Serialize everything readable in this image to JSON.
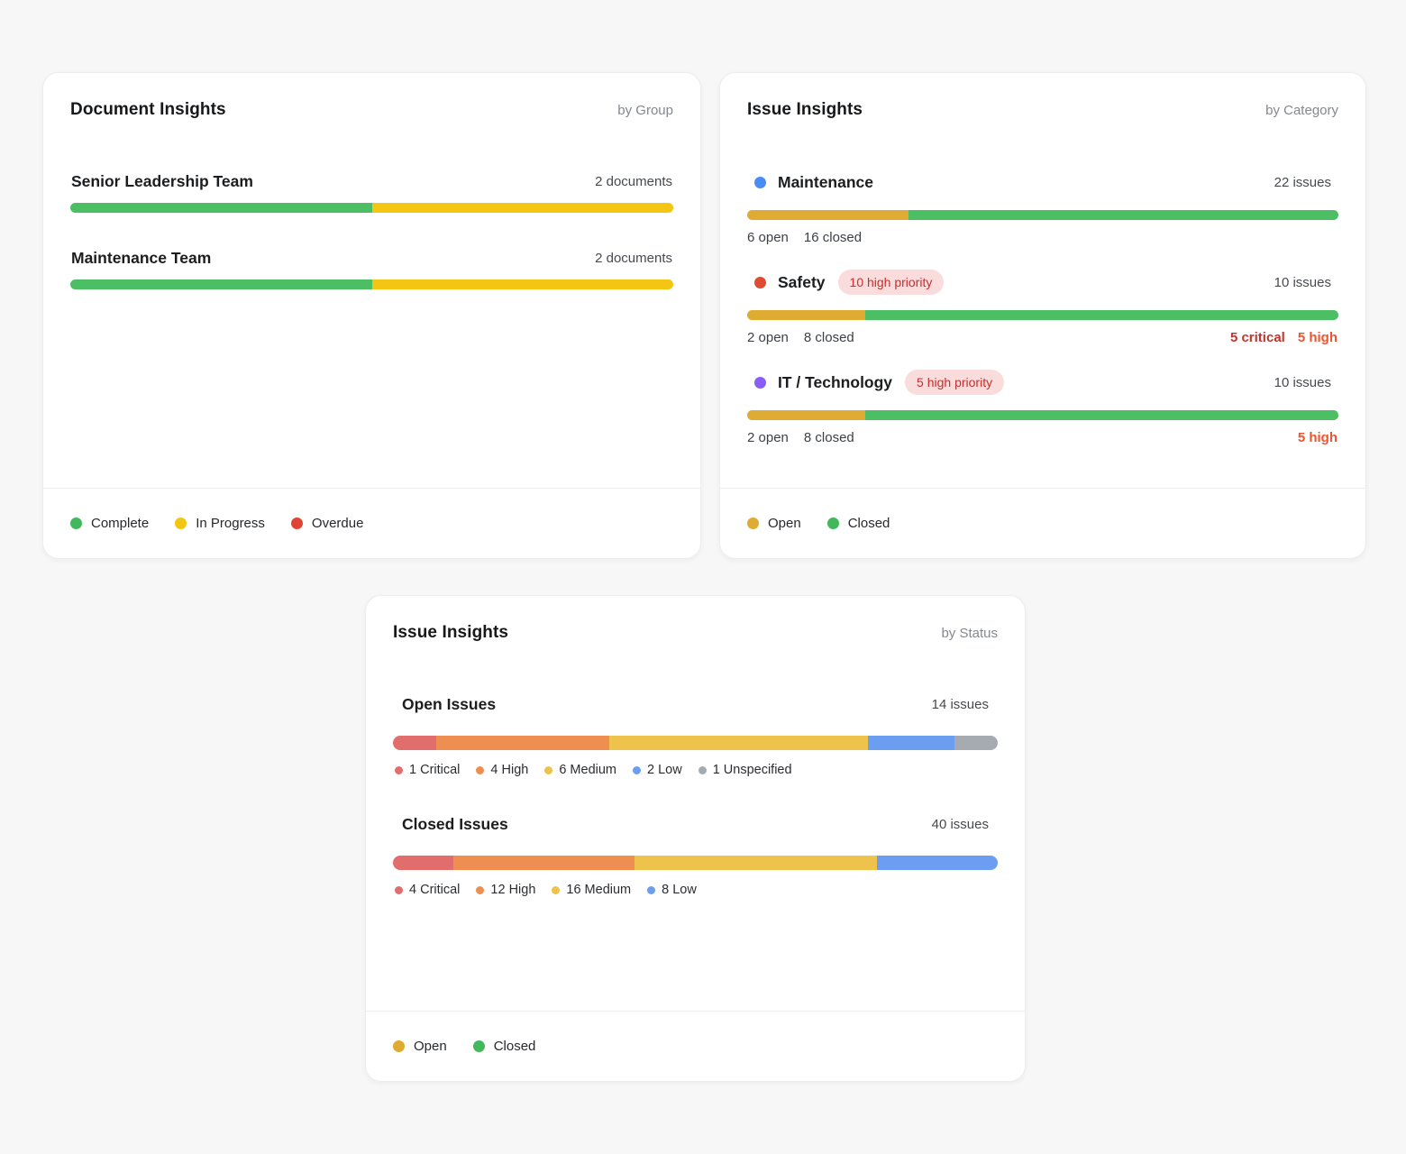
{
  "documents": {
    "title": "Document Insights",
    "byline": "by Group",
    "rows": [
      {
        "label": "Senior Leadership Team",
        "count": "2 documents",
        "segments": [
          {
            "name": "Complete",
            "color": "#4cbe63",
            "pct": 50
          },
          {
            "name": "In Progress",
            "color": "#f3c613",
            "pct": 50
          }
        ]
      },
      {
        "label": "Maintenance Team",
        "count": "2 documents",
        "segments": [
          {
            "name": "Complete",
            "color": "#4cbe63",
            "pct": 50
          },
          {
            "name": "In Progress",
            "color": "#f3c613",
            "pct": 50
          }
        ]
      }
    ],
    "legend": [
      {
        "label": "Complete",
        "color": "#42b85c"
      },
      {
        "label": "In Progress",
        "color": "#f3c613"
      },
      {
        "label": "Overdue",
        "color": "#df4532"
      }
    ]
  },
  "by_category": {
    "title": "Issue Insights",
    "byline": "by Category",
    "rows": [
      {
        "dot": "#4b8bf5",
        "label": "Maintenance",
        "count": "22 issues",
        "open": "6 open",
        "closed": "16 closed",
        "segments": [
          {
            "name": "Open",
            "color": "#dfab33",
            "pct": 27.3
          },
          {
            "name": "Closed",
            "color": "#4cbe63",
            "pct": 72.7
          }
        ]
      },
      {
        "dot": "#df4a32",
        "label": "Safety",
        "badge": "10 high priority",
        "count": "10 issues",
        "open": "2 open",
        "closed": "8 closed",
        "critical": "5 critical",
        "high": "5 high",
        "segments": [
          {
            "name": "Open",
            "color": "#dfab33",
            "pct": 20
          },
          {
            "name": "Closed",
            "color": "#4cbe63",
            "pct": 80
          }
        ]
      },
      {
        "dot": "#8a5cf6",
        "label": "IT / Technology",
        "badge": "5 high priority",
        "count": "10 issues",
        "open": "2 open",
        "closed": "8 closed",
        "high": "5 high",
        "segments": [
          {
            "name": "Open",
            "color": "#dfab33",
            "pct": 20
          },
          {
            "name": "Closed",
            "color": "#4cbe63",
            "pct": 80
          }
        ]
      }
    ],
    "legend": [
      {
        "label": "Open",
        "color": "#dfab33"
      },
      {
        "label": "Closed",
        "color": "#42b85c"
      }
    ]
  },
  "by_status": {
    "title": "Issue Insights",
    "byline": "by Status",
    "rows": [
      {
        "label": "Open Issues",
        "count": "14 issues",
        "segments": [
          {
            "name": "Critical",
            "color": "#e26d6d",
            "pct": 7.14,
            "label": "1 Critical"
          },
          {
            "name": "High",
            "color": "#ee8e50",
            "pct": 28.57,
            "label": "4 High"
          },
          {
            "name": "Medium",
            "color": "#efc24b",
            "pct": 42.86,
            "label": "6 Medium"
          },
          {
            "name": "Low",
            "color": "#6b9ef0",
            "pct": 14.29,
            "label": "2 Low"
          },
          {
            "name": "Unspecified",
            "color": "#a6abb1",
            "pct": 7.14,
            "label": "1 Unspecified"
          }
        ]
      },
      {
        "label": "Closed Issues",
        "count": "40 issues",
        "segments": [
          {
            "name": "Critical",
            "color": "#e26d6d",
            "pct": 10,
            "label": "4 Critical"
          },
          {
            "name": "High",
            "color": "#ee8e50",
            "pct": 30,
            "label": "12 High"
          },
          {
            "name": "Medium",
            "color": "#efc24b",
            "pct": 40,
            "label": "16 Medium"
          },
          {
            "name": "Low",
            "color": "#6b9ef0",
            "pct": 20,
            "label": "8 Low"
          }
        ]
      }
    ],
    "legend": [
      {
        "label": "Open",
        "color": "#dfab33"
      },
      {
        "label": "Closed",
        "color": "#42b85c"
      }
    ]
  },
  "chart_data": [
    {
      "type": "bar",
      "title": "Document Insights by Group",
      "categories": [
        "Senior Leadership Team",
        "Maintenance Team"
      ],
      "series": [
        {
          "name": "Complete",
          "values": [
            1,
            1
          ]
        },
        {
          "name": "In Progress",
          "values": [
            1,
            1
          ]
        },
        {
          "name": "Overdue",
          "values": [
            0,
            0
          ]
        }
      ],
      "totals": [
        2,
        2
      ],
      "units": "documents",
      "legend_position": "bottom"
    },
    {
      "type": "bar",
      "title": "Issue Insights by Category",
      "categories": [
        "Maintenance",
        "Safety",
        "IT / Technology"
      ],
      "series": [
        {
          "name": "Open",
          "values": [
            6,
            2,
            2
          ]
        },
        {
          "name": "Closed",
          "values": [
            16,
            8,
            8
          ]
        }
      ],
      "totals": [
        22,
        10,
        10
      ],
      "units": "issues",
      "annotations": [
        {
          "category": "Safety",
          "badge": "10 high priority",
          "critical": 5,
          "high": 5
        },
        {
          "category": "IT / Technology",
          "badge": "5 high priority",
          "high": 5
        }
      ],
      "legend_position": "bottom"
    },
    {
      "type": "bar",
      "title": "Issue Insights by Status",
      "categories": [
        "Open Issues",
        "Closed Issues"
      ],
      "series": [
        {
          "name": "Critical",
          "values": [
            1,
            4
          ]
        },
        {
          "name": "High",
          "values": [
            4,
            12
          ]
        },
        {
          "name": "Medium",
          "values": [
            6,
            16
          ]
        },
        {
          "name": "Low",
          "values": [
            2,
            8
          ]
        },
        {
          "name": "Unspecified",
          "values": [
            1,
            0
          ]
        }
      ],
      "totals": [
        14,
        40
      ],
      "units": "issues",
      "legend_position": "bottom"
    }
  ]
}
